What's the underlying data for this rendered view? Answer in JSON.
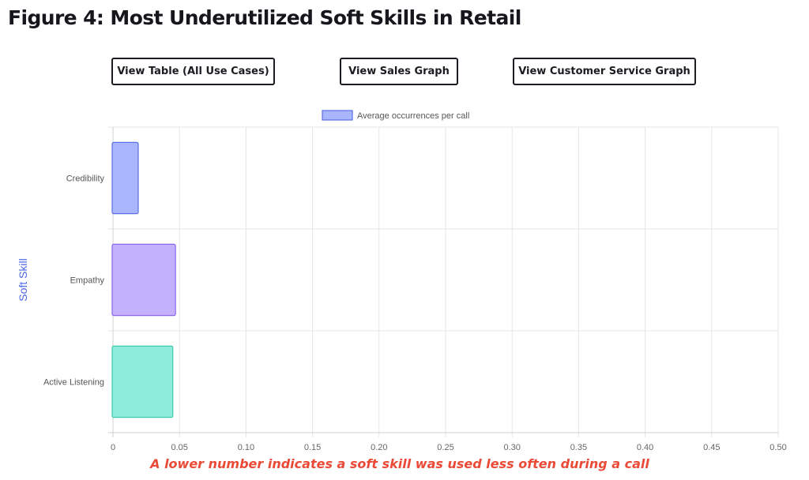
{
  "header": {
    "title": "Figure 4: Most Underutilized Soft Skills in Retail"
  },
  "buttons": {
    "table_label": "View Table (All Use Cases)",
    "sales_label": "View Sales Graph",
    "service_label": "View Customer Service Graph"
  },
  "footnote": "A lower number indicates a soft skill was used less often during a call",
  "chart_data": {
    "type": "bar",
    "orientation": "horizontal",
    "categories": [
      "Credibility",
      "Empathy",
      "Active Listening"
    ],
    "series": [
      {
        "name": "Average occurrences per call",
        "values": [
          0.019,
          0.047,
          0.045
        ]
      }
    ],
    "bar_colors": [
      {
        "fill": "#aab6fc",
        "stroke": "#5b6fe4"
      },
      {
        "fill": "#c4b1fb",
        "stroke": "#8b63ea"
      },
      {
        "fill": "#8eecdc",
        "stroke": "#3fc8a7"
      }
    ],
    "ylabel": "Soft Skill",
    "ylabel_color": "#4a66e6",
    "xlim": [
      0,
      0.5
    ],
    "x_ticks": [
      "0",
      "0.05",
      "0.10",
      "0.15",
      "0.20",
      "0.25",
      "0.30",
      "0.35",
      "0.40",
      "0.45",
      "0.50"
    ],
    "grid": true,
    "legend_position": "top"
  }
}
